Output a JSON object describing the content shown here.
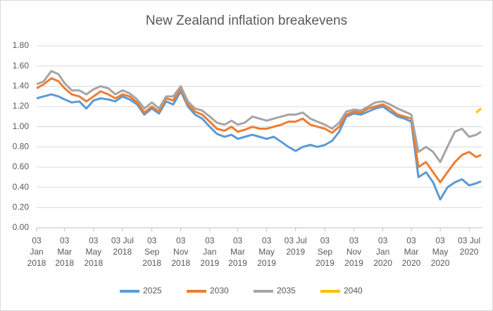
{
  "chart_data": {
    "type": "line",
    "title": "New Zealand inflation breakevens",
    "x": [
      "2018-01-03",
      "2018-01-18",
      "2018-02-03",
      "2018-02-18",
      "2018-03-03",
      "2018-03-18",
      "2018-04-03",
      "2018-04-18",
      "2018-05-03",
      "2018-05-18",
      "2018-06-03",
      "2018-06-18",
      "2018-07-03",
      "2018-07-18",
      "2018-08-03",
      "2018-08-18",
      "2018-09-03",
      "2018-09-18",
      "2018-10-03",
      "2018-10-18",
      "2018-11-03",
      "2018-11-18",
      "2018-12-03",
      "2018-12-18",
      "2019-01-03",
      "2019-01-18",
      "2019-02-03",
      "2019-02-18",
      "2019-03-03",
      "2019-03-18",
      "2019-04-03",
      "2019-04-18",
      "2019-05-03",
      "2019-05-18",
      "2019-06-03",
      "2019-06-18",
      "2019-07-03",
      "2019-07-18",
      "2019-08-03",
      "2019-08-18",
      "2019-09-03",
      "2019-09-18",
      "2019-10-03",
      "2019-10-18",
      "2019-11-03",
      "2019-11-18",
      "2019-12-03",
      "2019-12-18",
      "2020-01-03",
      "2020-01-18",
      "2020-02-03",
      "2020-02-18",
      "2020-03-03",
      "2020-03-18",
      "2020-04-03",
      "2020-04-18",
      "2020-05-03",
      "2020-05-18",
      "2020-06-03",
      "2020-06-18",
      "2020-07-03",
      "2020-07-18",
      "2020-07-28"
    ],
    "series": [
      {
        "name": "2025",
        "color": "#5b9bd5",
        "values": [
          1.28,
          1.3,
          1.32,
          1.3,
          1.27,
          1.24,
          1.25,
          1.18,
          1.26,
          1.28,
          1.27,
          1.25,
          1.3,
          1.27,
          1.22,
          1.12,
          1.18,
          1.13,
          1.25,
          1.22,
          1.35,
          1.2,
          1.12,
          1.08,
          1.0,
          0.93,
          0.9,
          0.92,
          0.88,
          0.9,
          0.92,
          0.9,
          0.88,
          0.9,
          0.85,
          0.8,
          0.76,
          0.8,
          0.82,
          0.8,
          0.82,
          0.86,
          0.95,
          1.1,
          1.13,
          1.12,
          1.15,
          1.18,
          1.2,
          1.15,
          1.1,
          1.08,
          1.05,
          0.5,
          0.55,
          0.45,
          0.28,
          0.4,
          0.45,
          0.48,
          0.42,
          0.44,
          0.46
        ]
      },
      {
        "name": "2030",
        "color": "#ed7d31",
        "values": [
          1.38,
          1.42,
          1.48,
          1.45,
          1.38,
          1.32,
          1.3,
          1.25,
          1.3,
          1.35,
          1.32,
          1.28,
          1.32,
          1.3,
          1.24,
          1.14,
          1.2,
          1.15,
          1.28,
          1.26,
          1.38,
          1.22,
          1.15,
          1.12,
          1.05,
          0.98,
          0.96,
          1.0,
          0.95,
          0.97,
          1.0,
          0.98,
          0.98,
          1.0,
          1.02,
          1.05,
          1.05,
          1.08,
          1.02,
          1.0,
          0.98,
          0.94,
          1.0,
          1.12,
          1.15,
          1.14,
          1.18,
          1.2,
          1.22,
          1.18,
          1.12,
          1.1,
          1.08,
          0.6,
          0.65,
          0.55,
          0.45,
          0.55,
          0.65,
          0.72,
          0.75,
          0.7,
          0.72
        ]
      },
      {
        "name": "2035",
        "color": "#a5a5a5",
        "values": [
          1.42,
          1.45,
          1.55,
          1.52,
          1.43,
          1.36,
          1.36,
          1.32,
          1.37,
          1.4,
          1.38,
          1.32,
          1.36,
          1.33,
          1.27,
          1.18,
          1.24,
          1.18,
          1.3,
          1.3,
          1.4,
          1.25,
          1.18,
          1.16,
          1.1,
          1.04,
          1.02,
          1.06,
          1.02,
          1.04,
          1.1,
          1.08,
          1.06,
          1.08,
          1.1,
          1.12,
          1.12,
          1.14,
          1.08,
          1.05,
          1.02,
          0.98,
          1.04,
          1.15,
          1.17,
          1.16,
          1.2,
          1.24,
          1.25,
          1.22,
          1.18,
          1.15,
          1.12,
          0.75,
          0.8,
          0.75,
          0.65,
          0.8,
          0.95,
          0.98,
          0.9,
          0.92,
          0.95
        ]
      },
      {
        "name": "2040",
        "color": "#ffc000",
        "values": [
          null,
          null,
          null,
          null,
          null,
          null,
          null,
          null,
          null,
          null,
          null,
          null,
          null,
          null,
          null,
          null,
          null,
          null,
          null,
          null,
          null,
          null,
          null,
          null,
          null,
          null,
          null,
          null,
          null,
          null,
          null,
          null,
          null,
          null,
          null,
          null,
          null,
          null,
          null,
          null,
          null,
          null,
          null,
          null,
          null,
          null,
          null,
          null,
          null,
          null,
          null,
          null,
          null,
          null,
          null,
          null,
          null,
          null,
          null,
          null,
          null,
          1.14,
          1.18
        ]
      }
    ],
    "xlim": [
      "2018-01-03",
      "2020-07-31"
    ],
    "xticks": [
      {
        "value": "2018-01-03",
        "label": "03\nJan\n2018"
      },
      {
        "value": "2018-03-03",
        "label": "03\nMar\n2018"
      },
      {
        "value": "2018-05-03",
        "label": "03\nMay\n2018"
      },
      {
        "value": "2018-07-03",
        "label": "03 Jul\n2018"
      },
      {
        "value": "2018-09-03",
        "label": "03\nSep\n2018"
      },
      {
        "value": "2018-11-03",
        "label": "03\nNov\n2018"
      },
      {
        "value": "2019-01-03",
        "label": "03\nJan\n2019"
      },
      {
        "value": "2019-03-03",
        "label": "03\nMar\n2019"
      },
      {
        "value": "2019-05-03",
        "label": "03\nMay\n2019"
      },
      {
        "value": "2019-07-03",
        "label": "03 Jul\n2019"
      },
      {
        "value": "2019-09-03",
        "label": "03\nSep\n2019"
      },
      {
        "value": "2019-11-03",
        "label": "03\nNov\n2019"
      },
      {
        "value": "2020-01-03",
        "label": "03\nJan\n2020"
      },
      {
        "value": "2020-03-03",
        "label": "03\nMar\n2020"
      },
      {
        "value": "2020-05-03",
        "label": "03\nMay\n2020"
      },
      {
        "value": "2020-07-03",
        "label": "03 Jul\n2020"
      }
    ],
    "ylim": [
      0,
      1.8
    ],
    "yticks": [
      {
        "value": 0,
        "label": "0.00"
      },
      {
        "value": 0.2,
        "label": "0.20"
      },
      {
        "value": 0.4,
        "label": "0.40"
      },
      {
        "value": 0.6,
        "label": "0.60"
      },
      {
        "value": 0.8,
        "label": "0.80"
      },
      {
        "value": 1.0,
        "label": "1.00"
      },
      {
        "value": 1.2,
        "label": "1.20"
      },
      {
        "value": 1.4,
        "label": "1.40"
      },
      {
        "value": 1.6,
        "label": "1.60"
      },
      {
        "value": 1.8,
        "label": "1.80"
      }
    ],
    "grid": true
  }
}
